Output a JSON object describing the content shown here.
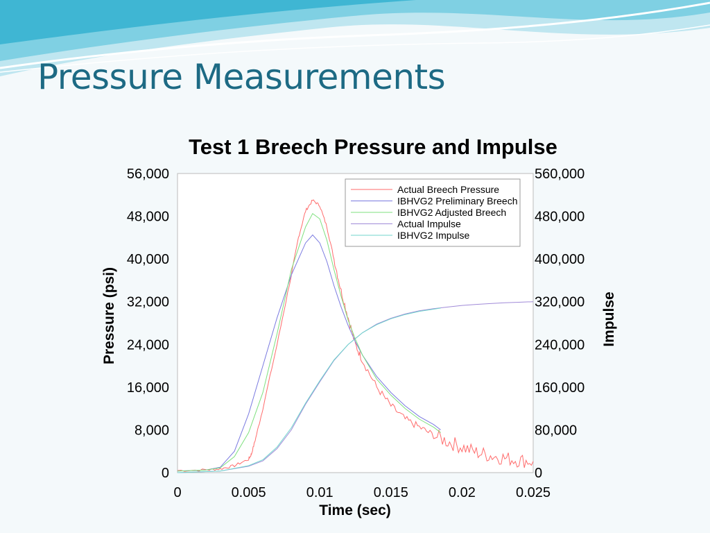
{
  "slide": {
    "title": "Pressure Measurements"
  },
  "colors": {
    "background": "#f4f9fb",
    "title": "#1d6a84",
    "decor_light": "#bfe6f0",
    "decor_mid": "#7fd0e3",
    "decor_dark": "#3fb6d3"
  },
  "chart_data": {
    "type": "line",
    "title": "Test 1 Breech Pressure and Impulse",
    "xlabel": "Time (sec)",
    "ylabel": "Pressure (psi)",
    "y2label": "Impulse",
    "xlim": [
      0,
      0.025
    ],
    "ylim": [
      0,
      56000
    ],
    "y2lim": [
      0,
      560000
    ],
    "xticks": [
      "0",
      "0.005",
      "0.01",
      "0.015",
      "0.02",
      "0.025"
    ],
    "yticks": [
      "0",
      "8,000",
      "16,000",
      "24,000",
      "32,000",
      "40,000",
      "48,000",
      "56,000"
    ],
    "y2ticks": [
      "0",
      "80,000",
      "160,000",
      "240,000",
      "320,000",
      "400,000",
      "480,000",
      "560,000"
    ],
    "grid": false,
    "legend_position": "top-right",
    "series": [
      {
        "name": "Actual Breech Pressure",
        "axis": "left",
        "color": "#ff6b6b",
        "noisy": true,
        "points": [
          [
            0,
            400
          ],
          [
            0.002,
            500
          ],
          [
            0.003,
            700
          ],
          [
            0.004,
            1300
          ],
          [
            0.005,
            2500
          ],
          [
            0.0052,
            3500
          ],
          [
            0.0055,
            6500
          ],
          [
            0.006,
            12000
          ],
          [
            0.007,
            24000
          ],
          [
            0.008,
            37000
          ],
          [
            0.0085,
            44000
          ],
          [
            0.009,
            49000
          ],
          [
            0.0095,
            51000
          ],
          [
            0.01,
            50000
          ],
          [
            0.0105,
            46000
          ],
          [
            0.011,
            40000
          ],
          [
            0.0115,
            34000
          ],
          [
            0.012,
            29000
          ],
          [
            0.0125,
            24000
          ],
          [
            0.013,
            21000
          ],
          [
            0.014,
            16000
          ],
          [
            0.015,
            12500
          ],
          [
            0.016,
            10000
          ],
          [
            0.017,
            8500
          ],
          [
            0.018,
            7000
          ],
          [
            0.019,
            5800
          ],
          [
            0.02,
            4800
          ],
          [
            0.021,
            3800
          ],
          [
            0.022,
            3200
          ],
          [
            0.023,
            2700
          ],
          [
            0.024,
            2300
          ],
          [
            0.025,
            2100
          ]
        ]
      },
      {
        "name": "IBHVG2 Preliminary Breech",
        "axis": "left",
        "color": "#7a7ae0",
        "points": [
          [
            0,
            300
          ],
          [
            0.002,
            500
          ],
          [
            0.003,
            1000
          ],
          [
            0.004,
            4000
          ],
          [
            0.005,
            11000
          ],
          [
            0.006,
            20000
          ],
          [
            0.007,
            29000
          ],
          [
            0.008,
            37000
          ],
          [
            0.009,
            43000
          ],
          [
            0.0095,
            44500
          ],
          [
            0.01,
            43000
          ],
          [
            0.0105,
            39500
          ],
          [
            0.011,
            35000
          ],
          [
            0.0115,
            31000
          ],
          [
            0.012,
            27500
          ],
          [
            0.0125,
            24500
          ],
          [
            0.013,
            22000
          ],
          [
            0.014,
            18000
          ],
          [
            0.015,
            15000
          ],
          [
            0.016,
            12500
          ],
          [
            0.017,
            10500
          ],
          [
            0.018,
            9000
          ],
          [
            0.0185,
            8000
          ]
        ]
      },
      {
        "name": "IBHVG2 Adjusted Breech",
        "axis": "left",
        "color": "#7ee07e",
        "points": [
          [
            0,
            300
          ],
          [
            0.002,
            500
          ],
          [
            0.003,
            900
          ],
          [
            0.004,
            3000
          ],
          [
            0.005,
            7500
          ],
          [
            0.006,
            15000
          ],
          [
            0.007,
            26000
          ],
          [
            0.008,
            38000
          ],
          [
            0.009,
            46000
          ],
          [
            0.0095,
            48500
          ],
          [
            0.01,
            47500
          ],
          [
            0.0105,
            43500
          ],
          [
            0.011,
            38000
          ],
          [
            0.0115,
            33000
          ],
          [
            0.012,
            28500
          ],
          [
            0.0125,
            25000
          ],
          [
            0.013,
            22000
          ],
          [
            0.014,
            17500
          ],
          [
            0.015,
            14500
          ],
          [
            0.016,
            12000
          ],
          [
            0.017,
            10000
          ],
          [
            0.018,
            8500
          ],
          [
            0.0185,
            7500
          ]
        ]
      },
      {
        "name": "Actual Impulse",
        "axis": "right",
        "color": "#a08ad8",
        "points": [
          [
            0,
            0
          ],
          [
            0.003,
            3000
          ],
          [
            0.005,
            12000
          ],
          [
            0.006,
            22000
          ],
          [
            0.007,
            45000
          ],
          [
            0.008,
            80000
          ],
          [
            0.009,
            128000
          ],
          [
            0.01,
            170000
          ],
          [
            0.011,
            210000
          ],
          [
            0.012,
            240000
          ],
          [
            0.013,
            262000
          ],
          [
            0.014,
            278000
          ],
          [
            0.015,
            289000
          ],
          [
            0.016,
            297000
          ],
          [
            0.017,
            303000
          ],
          [
            0.018,
            307000
          ],
          [
            0.019,
            310000
          ],
          [
            0.02,
            313000
          ],
          [
            0.021,
            315000
          ],
          [
            0.022,
            316500
          ],
          [
            0.023,
            318000
          ],
          [
            0.024,
            319000
          ],
          [
            0.025,
            320000
          ]
        ]
      },
      {
        "name": "IBHVG2 Impulse",
        "axis": "right",
        "color": "#70d6cc",
        "points": [
          [
            0,
            0
          ],
          [
            0.003,
            3000
          ],
          [
            0.005,
            13000
          ],
          [
            0.006,
            24000
          ],
          [
            0.007,
            48000
          ],
          [
            0.008,
            84000
          ],
          [
            0.009,
            130000
          ],
          [
            0.01,
            172000
          ],
          [
            0.011,
            211000
          ],
          [
            0.012,
            240000
          ],
          [
            0.013,
            262000
          ],
          [
            0.014,
            277000
          ],
          [
            0.015,
            288000
          ],
          [
            0.016,
            296000
          ],
          [
            0.017,
            302000
          ],
          [
            0.018,
            306000
          ],
          [
            0.0185,
            308000
          ]
        ]
      }
    ]
  }
}
